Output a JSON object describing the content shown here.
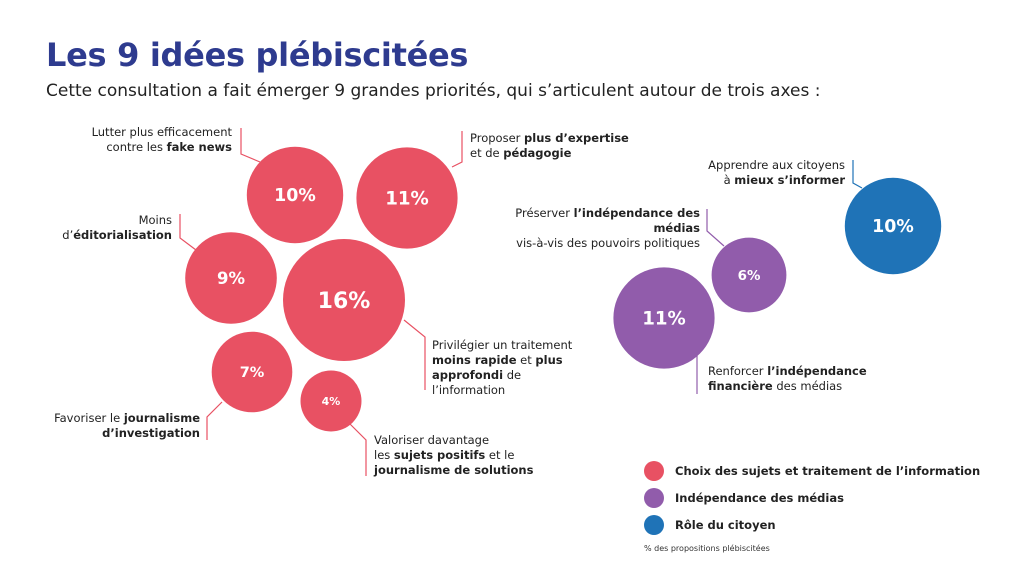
{
  "header": {
    "title": "Les 9 idées plébiscitées",
    "subtitle": "Cette consultation a fait émerger 9 grandes priorités, qui s’articulent autour de trois axes :"
  },
  "chart_data": {
    "type": "bubble",
    "unit": "%",
    "groups": [
      {
        "id": "choix",
        "name": "Choix des sujets et traitement de l’information",
        "color": "#e85163"
      },
      {
        "id": "independance",
        "name": "Indépendance des médias",
        "color": "#915cab"
      },
      {
        "id": "citoyen",
        "name": "Rôle du citoyen",
        "color": "#1f73b7"
      }
    ],
    "points": [
      {
        "id": "fake-news",
        "value": 10,
        "label": "10%",
        "group": "choix",
        "text": [
          [
            {
              "t": "Lutter plus efficacement"
            }
          ],
          [
            {
              "t": "contre les "
            },
            {
              "t": "fake news",
              "b": true
            }
          ]
        ]
      },
      {
        "id": "expertise",
        "value": 11,
        "label": "11%",
        "group": "choix",
        "text": [
          [
            {
              "t": "Proposer "
            },
            {
              "t": "plus d’expertise",
              "b": true
            }
          ],
          [
            {
              "t": "et de "
            },
            {
              "t": "pédagogie",
              "b": true
            }
          ]
        ]
      },
      {
        "id": "editorialisation",
        "value": 9,
        "label": "9%",
        "group": "choix",
        "text": [
          [
            {
              "t": "Moins"
            }
          ],
          [
            {
              "t": "d’"
            },
            {
              "t": "éditorialisation",
              "b": true
            }
          ]
        ]
      },
      {
        "id": "traitement",
        "value": 16,
        "label": "16%",
        "group": "choix",
        "text": [
          [
            {
              "t": "Privilégier un traitement"
            }
          ],
          [
            {
              "t": "moins rapide",
              "b": true
            },
            {
              "t": " et "
            },
            {
              "t": "plus",
              "b": true
            }
          ],
          [
            {
              "t": "approfondi",
              "b": true
            },
            {
              "t": " de"
            }
          ],
          [
            {
              "t": "l’information"
            }
          ]
        ]
      },
      {
        "id": "investigation",
        "value": 7,
        "label": "7%",
        "group": "choix",
        "text": [
          [
            {
              "t": "Favoriser le "
            },
            {
              "t": "journalisme",
              "b": true
            }
          ],
          [
            {
              "t": "d’investigation",
              "b": true
            }
          ]
        ]
      },
      {
        "id": "sujets-positifs",
        "value": 4,
        "label": "4%",
        "group": "choix",
        "text": [
          [
            {
              "t": "Valoriser davantage"
            }
          ],
          [
            {
              "t": "les "
            },
            {
              "t": "sujets positifs",
              "b": true
            },
            {
              "t": " et le"
            }
          ],
          [
            {
              "t": "journalisme de solutions",
              "b": true
            }
          ]
        ]
      },
      {
        "id": "independance-politique",
        "value": 6,
        "label": "6%",
        "group": "independance",
        "text": [
          [
            {
              "t": "Préserver "
            },
            {
              "t": "l’indépendance des médias",
              "b": true
            }
          ],
          [
            {
              "t": "vis-à-vis des pouvoirs politiques"
            }
          ]
        ]
      },
      {
        "id": "independance-financiere",
        "value": 11,
        "label": "11%",
        "group": "independance",
        "text": [
          [
            {
              "t": "Renforcer "
            },
            {
              "t": "l’indépendance",
              "b": true
            }
          ],
          [
            {
              "t": "financière",
              "b": true
            },
            {
              "t": " des médias"
            }
          ]
        ]
      },
      {
        "id": "s-informer",
        "value": 10,
        "label": "10%",
        "group": "citoyen",
        "text": [
          [
            {
              "t": "Apprendre aux citoyens"
            }
          ],
          [
            {
              "t": "à "
            },
            {
              "t": "mieux s’informer",
              "b": true
            }
          ]
        ]
      }
    ]
  },
  "legend": {
    "items": [
      {
        "label": "Choix des sujets et traitement de l’information",
        "color": "#e85163"
      },
      {
        "label": "Indépendance des médias",
        "color": "#915cab"
      },
      {
        "label": "Rôle du citoyen",
        "color": "#1f73b7"
      }
    ],
    "note": "% des propositions plébiscitées"
  }
}
